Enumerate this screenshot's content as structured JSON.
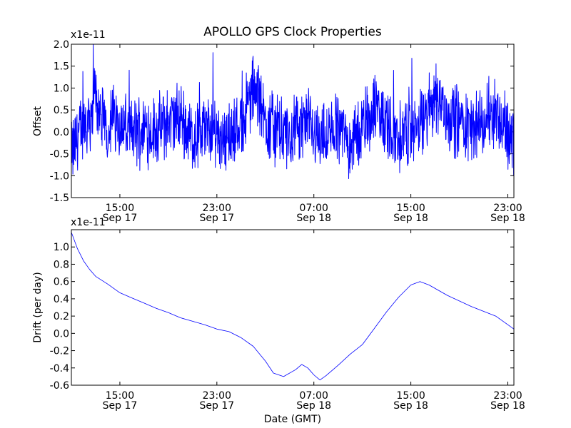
{
  "chart_data": [
    {
      "type": "line",
      "title": "APOLLO GPS Clock Properties",
      "xlabel": "",
      "ylabel": "Offset",
      "y_exponent_label": "x1e-11",
      "x_range": [
        "2012-09-17T11:00",
        "2012-09-18T23:30"
      ],
      "ylim": [
        -1.5,
        2.0
      ],
      "y_ticks": [
        "-1.5",
        "-1.0",
        "-0.5",
        "0.0",
        "0.5",
        "1.0",
        "1.5",
        "2.0"
      ],
      "x_ticks": [
        {
          "time": "2012-09-17T15:00",
          "line1": "15:00",
          "line2": "Sep 17"
        },
        {
          "time": "2012-09-17T23:00",
          "line1": "23:00",
          "line2": "Sep 17"
        },
        {
          "time": "2012-09-18T07:00",
          "line1": "07:00",
          "line2": "Sep 18"
        },
        {
          "time": "2012-09-18T15:00",
          "line1": "15:00",
          "line2": "Sep 18"
        },
        {
          "time": "2012-09-18T23:00",
          "line1": "23:00",
          "line2": "Sep 18"
        }
      ],
      "grid": false,
      "color": "#0000ff",
      "note_series": "noisy offset trace; envelope shown as key points (time, value)",
      "series": [
        {
          "name": "",
          "x": [
            "2012-09-17T11:00",
            "2012-09-17T11:30",
            "2012-09-17T12:00",
            "2012-09-17T12:30",
            "2012-09-17T13:00",
            "2012-09-17T13:30",
            "2012-09-17T14:00",
            "2012-09-17T14:30",
            "2012-09-17T15:00",
            "2012-09-17T16:00",
            "2012-09-17T17:00",
            "2012-09-17T18:00",
            "2012-09-17T19:00",
            "2012-09-17T20:00",
            "2012-09-17T21:00",
            "2012-09-17T22:00",
            "2012-09-17T23:00",
            "2012-09-18T00:00",
            "2012-09-18T01:00",
            "2012-09-18T02:00",
            "2012-09-18T03:00",
            "2012-09-18T04:00",
            "2012-09-18T05:00",
            "2012-09-18T06:00",
            "2012-09-18T07:00",
            "2012-09-18T08:00",
            "2012-09-18T09:00",
            "2012-09-18T10:00",
            "2012-09-18T11:00",
            "2012-09-18T12:00",
            "2012-09-18T13:00",
            "2012-09-18T14:00",
            "2012-09-18T15:00",
            "2012-09-18T16:00",
            "2012-09-18T17:00",
            "2012-09-18T18:00",
            "2012-09-18T19:00",
            "2012-09-18T20:00",
            "2012-09-18T21:00",
            "2012-09-18T22:00",
            "2012-09-18T23:00",
            "2012-09-18T23:30"
          ],
          "values": [
            -1.0,
            -0.2,
            0.3,
            0.6,
            1.6,
            0.4,
            0.1,
            0.7,
            0.3,
            -0.1,
            0.2,
            0.0,
            0.4,
            0.6,
            -0.3,
            0.1,
            0.0,
            -0.2,
            0.3,
            1.8,
            0.5,
            0.1,
            -0.3,
            0.4,
            0.1,
            -0.4,
            0.3,
            -0.5,
            0.2,
            1.0,
            0.3,
            -0.2,
            0.1,
            0.3,
            1.6,
            0.7,
            0.4,
            0.2,
            0.3,
            0.9,
            -0.1,
            -0.4
          ]
        }
      ]
    },
    {
      "type": "line",
      "title": "",
      "xlabel": "Date (GMT)",
      "ylabel": "Drift (per day)",
      "y_exponent_label": "x1e-11",
      "x_range": [
        "2012-09-17T11:00",
        "2012-09-18T23:30"
      ],
      "ylim": [
        -0.6,
        1.2
      ],
      "y_ticks": [
        "-0.6",
        "-0.4",
        "-0.2",
        "0.0",
        "0.2",
        "0.4",
        "0.6",
        "0.8",
        "1.0"
      ],
      "x_ticks": [
        {
          "time": "2012-09-17T15:00",
          "line1": "15:00",
          "line2": "Sep 17"
        },
        {
          "time": "2012-09-17T23:00",
          "line1": "23:00",
          "line2": "Sep 17"
        },
        {
          "time": "2012-09-18T07:00",
          "line1": "07:00",
          "line2": "Sep 18"
        },
        {
          "time": "2012-09-18T15:00",
          "line1": "15:00",
          "line2": "Sep 18"
        },
        {
          "time": "2012-09-18T23:00",
          "line1": "23:00",
          "line2": "Sep 18"
        }
      ],
      "grid": false,
      "color": "#0000ff",
      "series": [
        {
          "name": "",
          "x": [
            "2012-09-17T11:00",
            "2012-09-17T11:30",
            "2012-09-17T12:00",
            "2012-09-17T12:30",
            "2012-09-17T13:00",
            "2012-09-17T14:00",
            "2012-09-17T15:00",
            "2012-09-17T16:00",
            "2012-09-17T17:00",
            "2012-09-17T18:00",
            "2012-09-17T19:00",
            "2012-09-17T20:00",
            "2012-09-17T21:00",
            "2012-09-17T22:00",
            "2012-09-17T23:00",
            "2012-09-18T00:00",
            "2012-09-18T01:00",
            "2012-09-18T02:00",
            "2012-09-18T03:00",
            "2012-09-18T03:40",
            "2012-09-18T04:30",
            "2012-09-18T05:30",
            "2012-09-18T06:00",
            "2012-09-18T06:30",
            "2012-09-18T07:00",
            "2012-09-18T07:30",
            "2012-09-18T08:00",
            "2012-09-18T09:00",
            "2012-09-18T10:00",
            "2012-09-18T11:00",
            "2012-09-18T12:00",
            "2012-09-18T13:00",
            "2012-09-18T14:00",
            "2012-09-18T15:00",
            "2012-09-18T15:45",
            "2012-09-18T16:30",
            "2012-09-18T18:00",
            "2012-09-18T20:00",
            "2012-09-18T22:00",
            "2012-09-18T23:00",
            "2012-09-18T23:30"
          ],
          "values": [
            1.17,
            0.98,
            0.84,
            0.74,
            0.66,
            0.57,
            0.47,
            0.41,
            0.35,
            0.29,
            0.24,
            0.18,
            0.14,
            0.1,
            0.05,
            0.02,
            -0.05,
            -0.15,
            -0.32,
            -0.46,
            -0.5,
            -0.42,
            -0.36,
            -0.4,
            -0.48,
            -0.54,
            -0.49,
            -0.37,
            -0.24,
            -0.13,
            0.06,
            0.25,
            0.42,
            0.56,
            0.6,
            0.56,
            0.44,
            0.31,
            0.2,
            0.1,
            0.05
          ]
        }
      ]
    }
  ]
}
